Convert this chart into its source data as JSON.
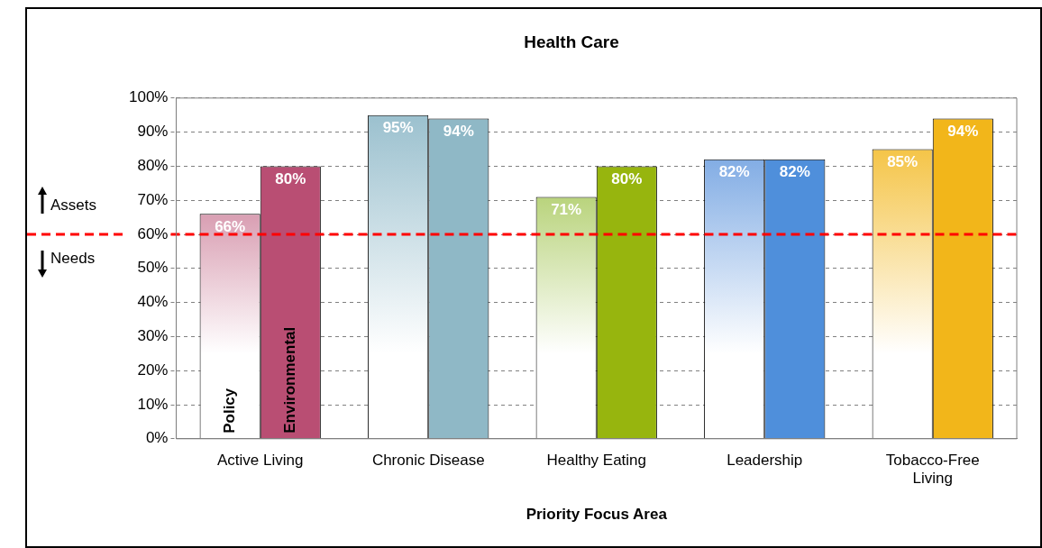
{
  "chart_data": {
    "type": "bar",
    "title": "Health Care",
    "xlabel": "Priority Focus Area",
    "categories": [
      "Active Living",
      "Chronic Disease",
      "Healthy Eating",
      "Leadership",
      "Tobacco-Free Living"
    ],
    "series": [
      {
        "name": "Policy",
        "colors": [
          "#b94e73",
          "#94bccb",
          "#8db82a",
          "#5b93dc",
          "#f2b61a"
        ],
        "values": [
          66,
          95,
          71,
          82,
          85
        ],
        "value_labels": [
          "66%",
          "95%",
          "71%",
          "82%",
          "85%"
        ]
      },
      {
        "name": "Environmental",
        "colors": [
          "#b94e73",
          "#8fb8c6",
          "#97b50e",
          "#4f8fdb",
          "#f2b61a"
        ],
        "values": [
          80,
          94,
          80,
          82,
          94
        ],
        "value_labels": [
          "80%",
          "94%",
          "80%",
          "82%",
          "94%"
        ]
      }
    ],
    "ylim": [
      0,
      100
    ],
    "yticks": [
      {
        "value": 0,
        "label": "0%"
      },
      {
        "value": 10,
        "label": "10%"
      },
      {
        "value": 20,
        "label": "20%"
      },
      {
        "value": 30,
        "label": "30%"
      },
      {
        "value": 40,
        "label": "40%"
      },
      {
        "value": 50,
        "label": "50%"
      },
      {
        "value": 60,
        "label": "60%"
      },
      {
        "value": 70,
        "label": "70%"
      },
      {
        "value": 80,
        "label": "80%"
      },
      {
        "value": 90,
        "label": "90%"
      },
      {
        "value": 100,
        "label": "100%"
      }
    ],
    "grid": "y",
    "legend": false,
    "ref_lines": [
      {
        "axis": "y",
        "value": 60,
        "color": "#ff0000",
        "line_style": "dashed"
      }
    ],
    "annotations": [
      "Assets",
      "Needs"
    ]
  }
}
